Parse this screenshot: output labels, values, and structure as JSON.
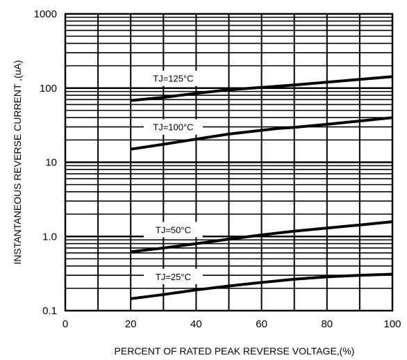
{
  "chart_data": {
    "type": "line",
    "title": "",
    "xlabel": "PERCENT OF RATED PEAK REVERSE VOLTAGE,(%)",
    "ylabel": "INSTANTANEOUS  REVERSE  CURRENT ,(uA)",
    "xlim": [
      0,
      100
    ],
    "ylim": [
      0.1,
      1000
    ],
    "yscale": "log",
    "grid": true,
    "legend": "none",
    "x_ticks": [
      0,
      20,
      40,
      60,
      80,
      100
    ],
    "x_tick_labels": [
      "0",
      "20",
      "40",
      "60",
      "80",
      "100"
    ],
    "y_ticks": [
      0.1,
      1,
      10,
      100,
      1000
    ],
    "y_tick_labels": [
      "0.1",
      "1.0",
      "10",
      "100",
      "1000"
    ],
    "annotations": [
      "TJ=125°C",
      "TJ=100°C",
      "TJ=50°C",
      "TJ=25°C"
    ],
    "series": [
      {
        "label_ref": 0,
        "x": [
          20,
          30,
          40,
          50,
          60,
          70,
          80,
          90,
          100
        ],
        "y": [
          68,
          75,
          85,
          95,
          102,
          110,
          120,
          131,
          143
        ]
      },
      {
        "label_ref": 1,
        "x": [
          20,
          30,
          40,
          50,
          60,
          65,
          70,
          80,
          90,
          100
        ],
        "y": [
          15,
          17.5,
          20.5,
          24,
          27,
          28.5,
          29.5,
          32.5,
          36,
          40
        ]
      },
      {
        "label_ref": 2,
        "x": [
          20,
          30,
          40,
          50,
          60,
          70,
          80,
          90,
          100
        ],
        "y": [
          0.62,
          0.7,
          0.8,
          0.92,
          1.05,
          1.18,
          1.3,
          1.43,
          1.58
        ]
      },
      {
        "label_ref": 3,
        "x": [
          20,
          30,
          40,
          50,
          60,
          70,
          80,
          90,
          100
        ],
        "y": [
          0.145,
          0.165,
          0.19,
          0.215,
          0.24,
          0.265,
          0.285,
          0.3,
          0.31
        ]
      }
    ],
    "colors": {
      "line": "#000000",
      "grid": "#000000",
      "background": "#ffffff"
    }
  }
}
